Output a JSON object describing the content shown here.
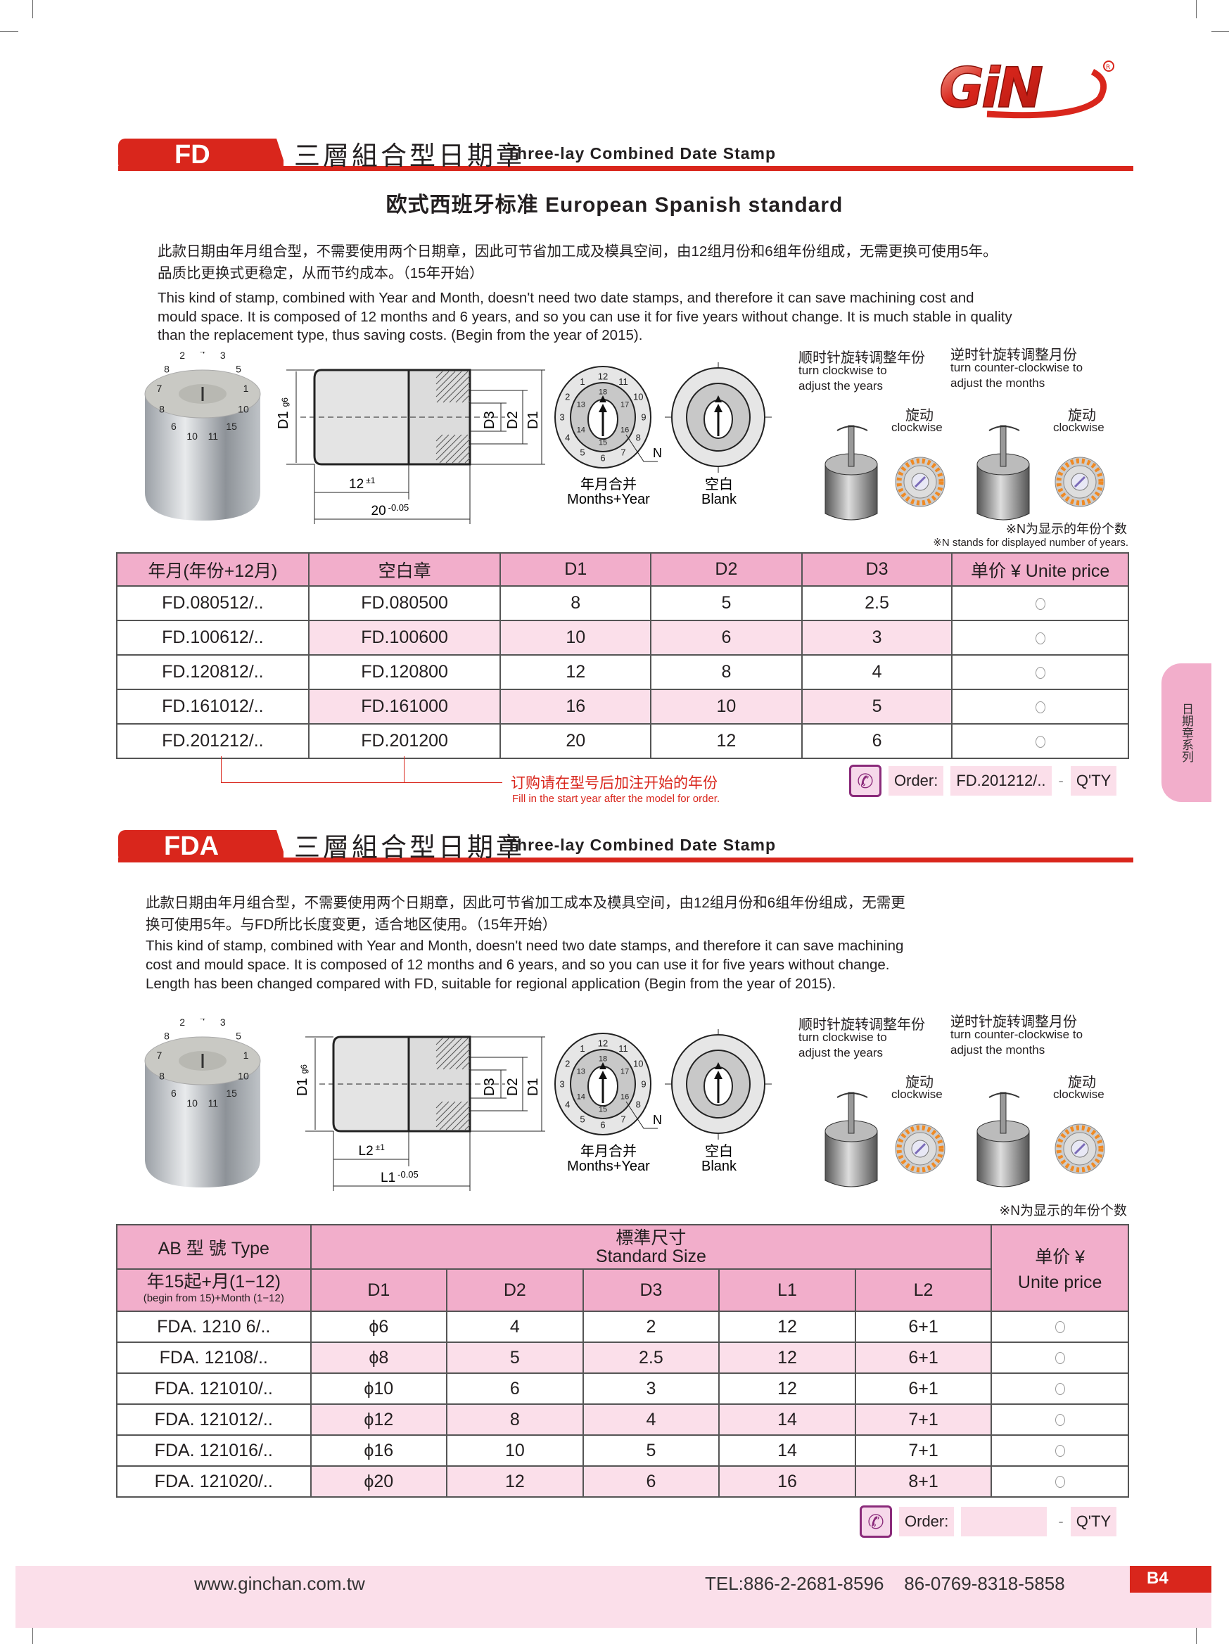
{
  "logo": {
    "text": "GiN"
  },
  "fd": {
    "code": "FD",
    "title_cn": "三層組合型日期章",
    "title_en": "Three-lay Combined Date Stamp",
    "subtitle": "欧式西班牙标准 European Spanish standard",
    "desc_cn": [
      "此款日期由年月组合型，不需要使用两个日期章，因此可节省加工成及模具空间，由12组月份和6组年份组成，无需更换可使用5年。",
      "品质比更换式更稳定，从而节约成本。（15年开始）"
    ],
    "desc_en": [
      "This kind of stamp, combined with Year and Month, doesn't need two date stamps, and therefore it can save machining cost and",
      "mould space. It is composed of 12 months and 6 years, and so you can use it for five years without change. It is much stable in quality",
      "than the replacement type, thus saving costs.  (Begin from the year of 2015)."
    ],
    "diagram": {
      "d1g6_main": "D1",
      "d1g6_sub": "g6",
      "d3": "D3",
      "d2": "D2",
      "d1": "D1",
      "len_short": "12",
      "len_short_tol": "±1",
      "len_long": "20",
      "len_long_tol": "-0.05",
      "n": "N",
      "dial1_cn": "年月合并",
      "dial1_en": "Months+Year",
      "dial2_cn": "空白",
      "dial2_en": "Blank"
    },
    "instructions": {
      "years_cn": "顺时针旋转调整年份",
      "years_en1": "turn clockwise to",
      "years_en2": "adjust the years",
      "months_cn": "逆时针旋转调整月份",
      "months_en1": "turn counter-clockwise to",
      "months_en2": "adjust the months",
      "rotate_cn": "旋动",
      "rotate_en": "clockwise"
    },
    "note_cn": "※N为显示的年份个数",
    "note_en": "※N stands for displayed number of years.",
    "table": {
      "headers": [
        "年月(年份+12月)",
        "空白章",
        "D1",
        "D2",
        "D3",
        "单价 ¥  Unite price"
      ],
      "rows": [
        [
          "FD.080512/..",
          "FD.080500",
          "8",
          "5",
          "2.5"
        ],
        [
          "FD.100612/..",
          "FD.100600",
          "10",
          "6",
          "3"
        ],
        [
          "FD.120812/..",
          "FD.120800",
          "12",
          "8",
          "4"
        ],
        [
          "FD.161012/..",
          "FD.161000",
          "16",
          "10",
          "5"
        ],
        [
          "FD.201212/..",
          "FD.201200",
          "20",
          "12",
          "6"
        ]
      ]
    },
    "order_note_cn": "订购请在型号后加注开始的年份",
    "order_note_en": "Fill in the start year after the model for order.",
    "order": {
      "label": "Order:",
      "value": "FD.201212/..",
      "dash": "-",
      "qty": "Q'TY"
    }
  },
  "fda": {
    "code": "FDA",
    "title_cn": "三層組合型日期章",
    "title_en": "Three-lay Combined Date Stamp",
    "desc_cn": [
      "此款日期由年月组合型，不需要使用两个日期章，因此可节省加工成本及模具空间，由12组月份和6组年份组成，无需更",
      "换可使用5年。与FD所比长度变更，适合地区使用。（15年开始）"
    ],
    "desc_en": [
      "This kind of stamp, combined with Year and Month, doesn't need two date stamps, and therefore it can save machining",
      "cost and mould space. It is composed of 12 months and 6 years, and so you can use it for five years without change.",
      "Length has been changed compared with FD, suitable for regional application  (Begin from the year of 2015)."
    ],
    "diagram": {
      "d1g6_main": "D1",
      "d1g6_sub": "g6",
      "d3": "D3",
      "d2": "D2",
      "d1": "D1",
      "len_short": "L2",
      "len_short_tol": "±1",
      "len_long": "L1",
      "len_long_tol": "-0.05",
      "n": "N",
      "dial1_cn": "年月合并",
      "dial1_en": "Months+Year",
      "dial2_cn": "空白",
      "dial2_en": "Blank"
    },
    "instructions": {
      "years_cn": "顺时针旋转调整年份",
      "years_en1": "turn clockwise to",
      "years_en2": "adjust the years",
      "months_cn": "逆时针旋转调整月份",
      "months_en1": "turn counter-clockwise to",
      "months_en2": "adjust the months",
      "rotate_cn": "旋动",
      "rotate_en": "clockwise"
    },
    "note_cn": "※N为显示的年份个数",
    "table": {
      "type_header": "AB 型  號  Type",
      "size_header_cn": "標準尺寸",
      "size_header_en": "Standard  Size",
      "price_header_cn": "单价 ¥",
      "price_header_en": "Unite price",
      "type_sub_cn": "年15起+月(1−12)",
      "type_sub_en": "(begin from 15)+Month (1−12)",
      "size_cols": [
        "D1",
        "D2",
        "D3",
        "L1",
        "L2"
      ],
      "rows": [
        [
          "FDA. 1210 6/..",
          "ϕ6",
          "4",
          "2",
          "12",
          "6+1"
        ],
        [
          "FDA. 12108/..",
          "ϕ8",
          "5",
          "2.5",
          "12",
          "6+1"
        ],
        [
          "FDA. 121010/..",
          "ϕ10",
          "6",
          "3",
          "12",
          "6+1"
        ],
        [
          "FDA. 121012/..",
          "ϕ12",
          "8",
          "4",
          "14",
          "7+1"
        ],
        [
          "FDA. 121016/..",
          "ϕ16",
          "10",
          "5",
          "14",
          "7+1"
        ],
        [
          "FDA. 121020/..",
          "ϕ20",
          "12",
          "6",
          "16",
          "8+1"
        ]
      ]
    },
    "order": {
      "label": "Order:",
      "value": "",
      "dash": "-",
      "qty": "Q'TY"
    }
  },
  "side_tab": "日期章系列",
  "footer": {
    "website": "www.ginchan.com.tw",
    "tel": "TEL:886-2-2681-8596    86-0769-8318-5858",
    "page": "B4"
  },
  "colors": {
    "red": "#d9261c",
    "pink_header": "#f2aecb",
    "pink_light": "#fbdfea",
    "order_icon": "#8a2a7a"
  },
  "icons": {
    "order": "phone-icon",
    "price_cell": "circle-icon"
  }
}
